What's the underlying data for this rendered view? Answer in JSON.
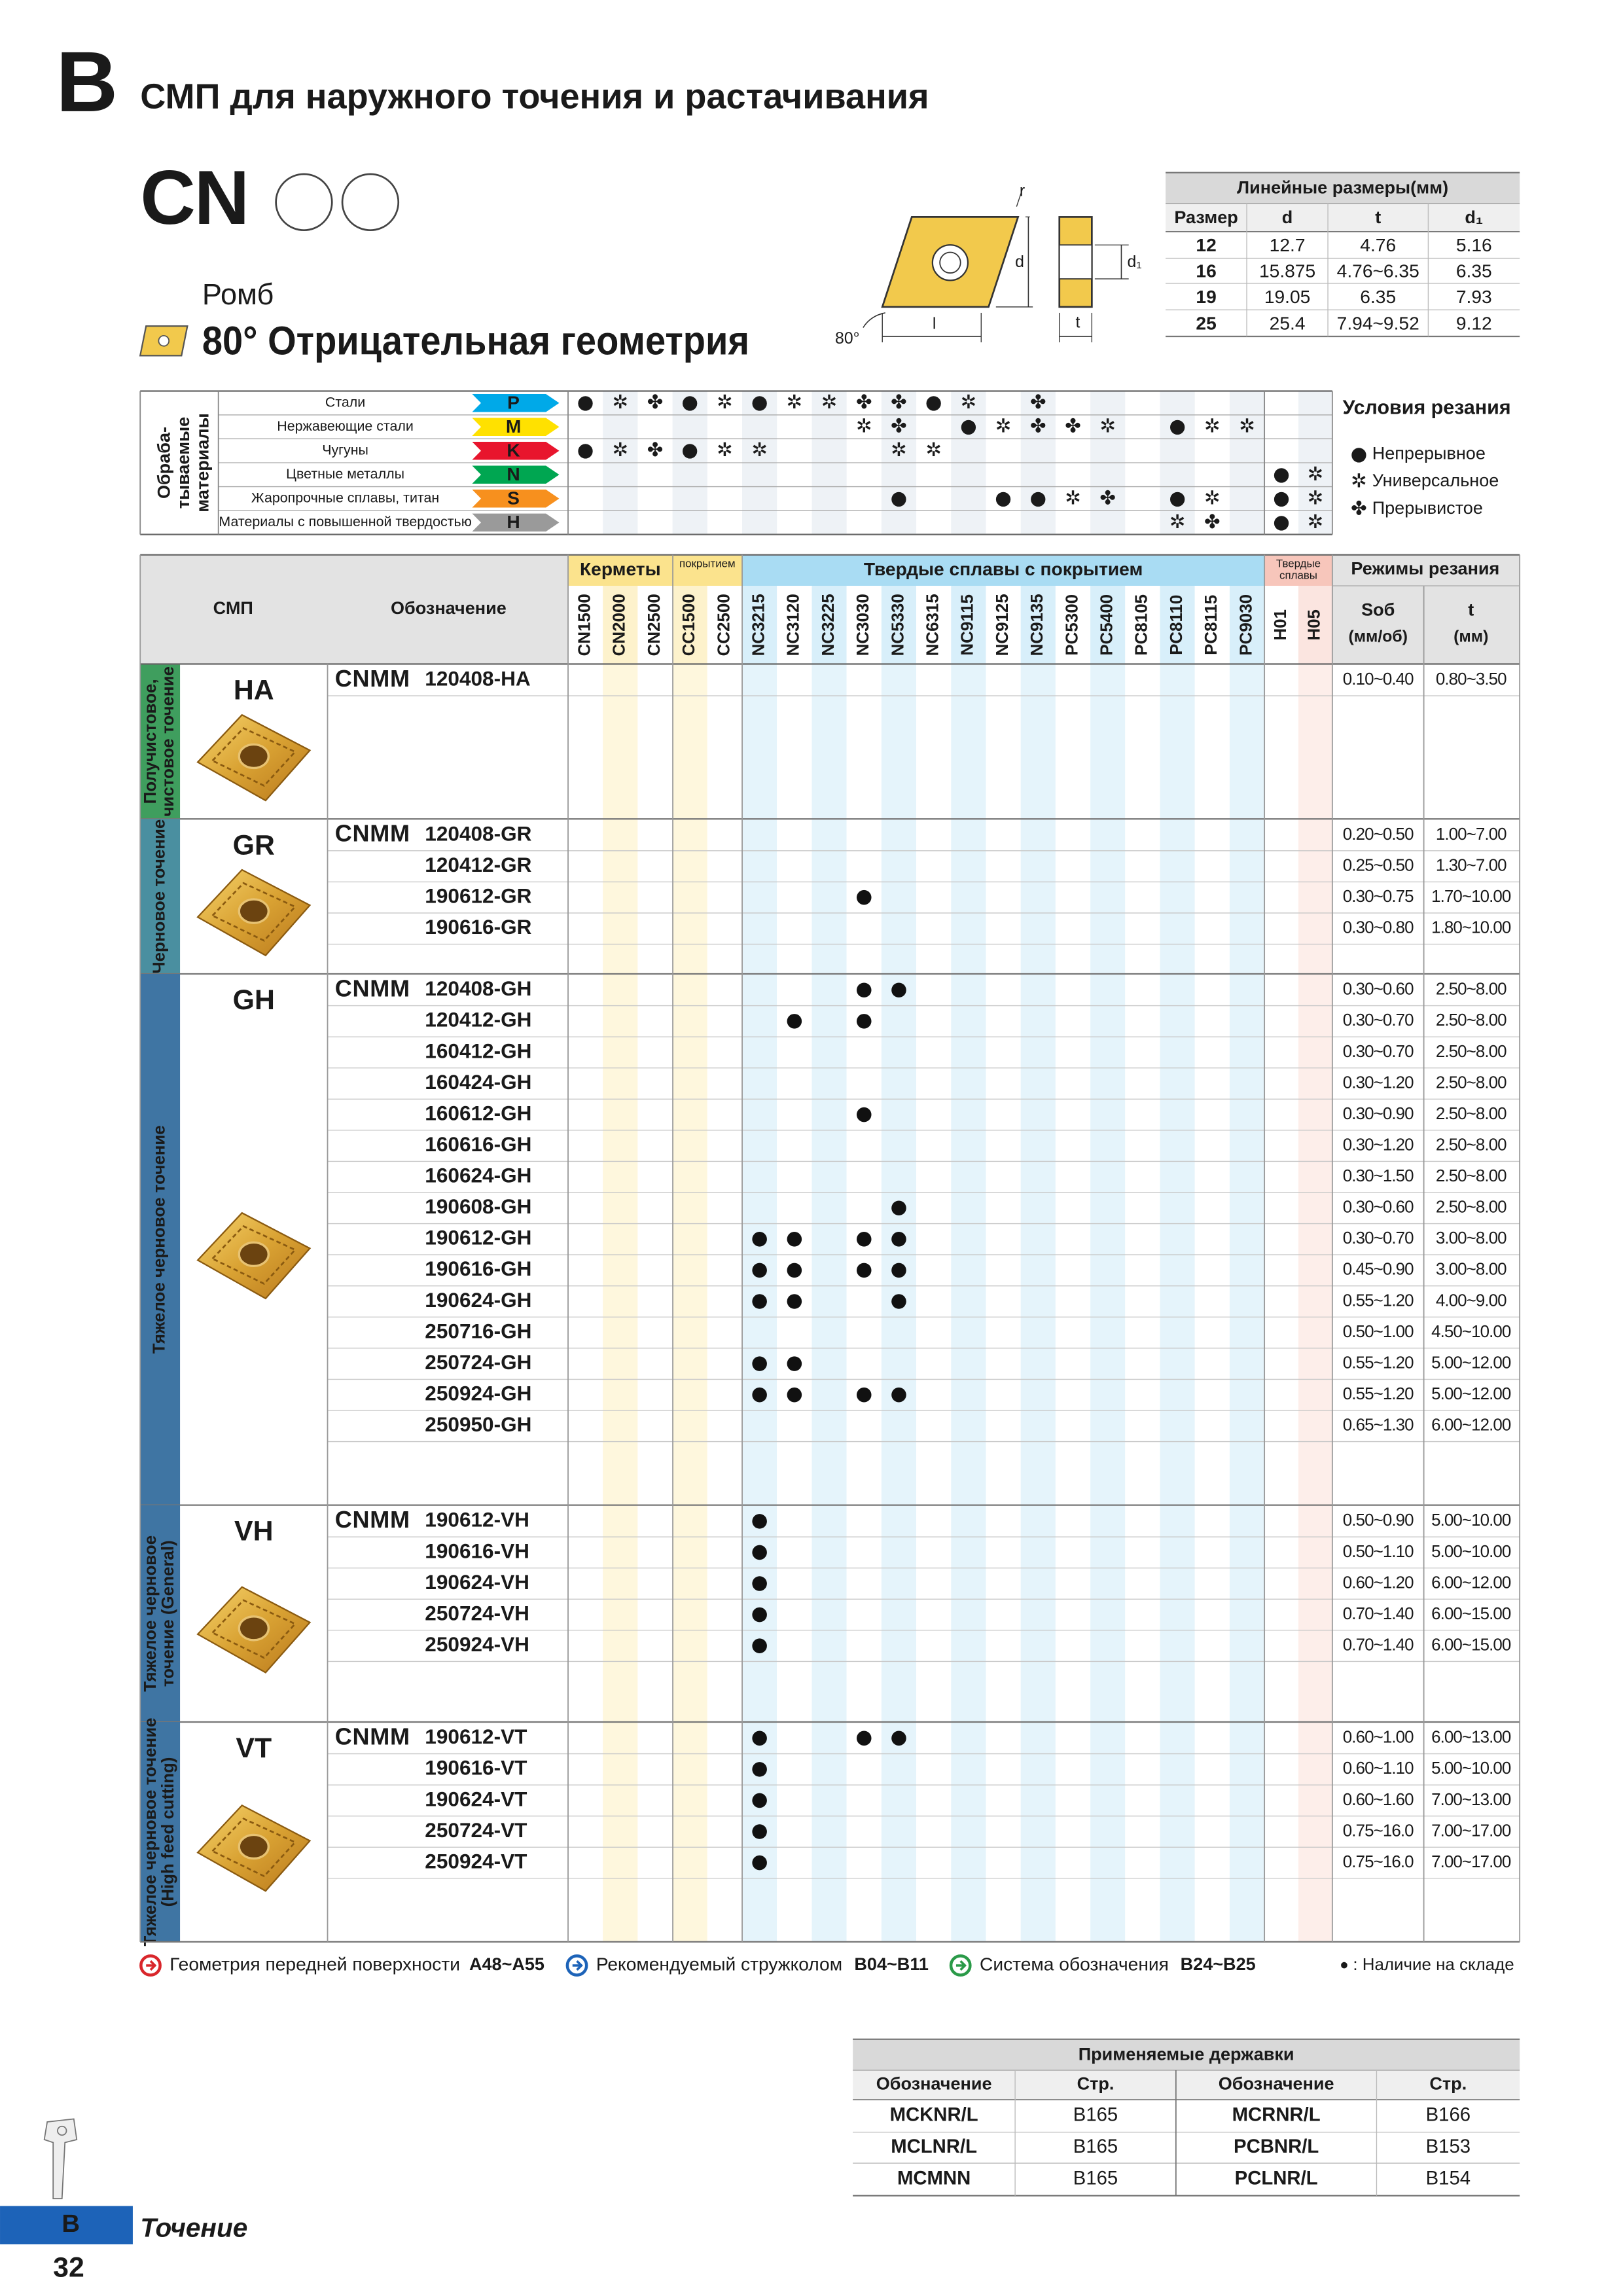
{
  "header": {
    "section": "B",
    "title": "СМП для наружного точения и растачивания",
    "code": "CN",
    "shape": "Ромб",
    "geometry": "80° Отрицательная геометрия"
  },
  "diagram_labels": {
    "r": "r",
    "d": "d",
    "d1": "d₁",
    "l": "l",
    "t": "t",
    "angle": "80°"
  },
  "dimensions": {
    "title": "Линейные размеры(мм)",
    "columns": [
      "Размер",
      "d",
      "t",
      "d₁"
    ],
    "rows": [
      [
        "12",
        "12.7",
        "4.76",
        "5.16"
      ],
      [
        "16",
        "15.875",
        "4.76~6.35",
        "6.35"
      ],
      [
        "19",
        "19.05",
        "6.35",
        "7.93"
      ],
      [
        "25",
        "25.4",
        "7.94~9.52",
        "9.12"
      ]
    ]
  },
  "materials": {
    "title_lines": [
      "Обраба-",
      "тываемые",
      "материалы"
    ],
    "rows": [
      {
        "name": "Стали",
        "iso": "P",
        "color": "#00a9e8",
        "cells": [
          "●",
          "✲",
          "✤",
          "●",
          "✲",
          "●",
          "✲",
          "✲",
          "✤",
          "✤",
          "●",
          "✲",
          null,
          "✤",
          null,
          null,
          null,
          null,
          null,
          null,
          null,
          null
        ]
      },
      {
        "name": "Нержавеющие стали",
        "iso": "M",
        "color": "#ffe100",
        "cells": [
          null,
          null,
          null,
          null,
          null,
          null,
          null,
          null,
          "✲",
          "✤",
          null,
          "●",
          "✲",
          "✤",
          "✤",
          "✲",
          null,
          "●",
          "✲",
          "✲",
          null,
          null
        ]
      },
      {
        "name": "Чугуны",
        "iso": "K",
        "color": "#e8152d",
        "cells": [
          "●",
          "✲",
          "✤",
          "●",
          "✲",
          "✲",
          null,
          null,
          null,
          "✲",
          "✲",
          null,
          null,
          null,
          null,
          null,
          null,
          null,
          null,
          null,
          null,
          null
        ]
      },
      {
        "name": "Цветные металлы",
        "iso": "N",
        "color": "#00a651",
        "cells": [
          null,
          null,
          null,
          null,
          null,
          null,
          null,
          null,
          null,
          null,
          null,
          null,
          null,
          null,
          null,
          null,
          null,
          null,
          null,
          null,
          "●",
          "✲"
        ]
      },
      {
        "name": "Жаропрочные сплавы, титан",
        "iso": "S",
        "color": "#f7901e",
        "cells": [
          null,
          null,
          null,
          null,
          null,
          null,
          null,
          null,
          null,
          "●",
          null,
          null,
          "●",
          "●",
          "✲",
          "✤",
          null,
          "●",
          "✲",
          null,
          "●",
          "✲"
        ]
      },
      {
        "name": "Материалы с повышенной твердостью",
        "iso": "H",
        "color": "#9a9a9a",
        "cells": [
          null,
          null,
          null,
          null,
          null,
          null,
          null,
          null,
          null,
          null,
          null,
          null,
          null,
          null,
          null,
          null,
          null,
          "✲",
          "✤",
          null,
          "●",
          "✲"
        ]
      }
    ]
  },
  "conditions": {
    "title": "Условия резания",
    "items": [
      {
        "symbol": "●",
        "label": "Непрерывное"
      },
      {
        "symbol": "✲",
        "label": "Универсальное"
      },
      {
        "symbol": "✤",
        "label": "Прерывистое"
      }
    ]
  },
  "main_table": {
    "headers": {
      "insert": "СМП",
      "designation": "Обозначение",
      "cutting": "Режимы резания",
      "feed": "Sоб",
      "feed_unit": "(мм/об)",
      "depth": "t",
      "depth_unit": "(мм)"
    },
    "grade_groups": [
      {
        "label": "Керметы",
        "color": "#fbe38d",
        "grades": [
          "CN1500",
          "CN2000",
          "CN2500"
        ]
      },
      {
        "label": "покрытием",
        "color": "#fbe38d",
        "grades": [
          "CC1500",
          "CC2500"
        ]
      },
      {
        "label": "Твердые сплавы с покрытием",
        "color": "#a9dcf3",
        "grades": [
          "NC3215",
          "NC3120",
          "NC3225",
          "NC3030",
          "NC5330",
          "NC6315",
          "NC9115",
          "NC9125",
          "NC9135",
          "PC5300",
          "PC5400",
          "PC8105",
          "PC8110",
          "PC8115",
          "PC9030"
        ]
      },
      {
        "label": "Твердые сплавы",
        "color": "#f7c6bb",
        "grades": [
          "H01",
          "H05"
        ]
      }
    ],
    "groups": [
      {
        "code": "HA",
        "label": [
          "Получистовое,",
          "чистовое точение"
        ],
        "color": "#3f9e5e",
        "rows": [
          {
            "prefix": "CNMM",
            "designation": "120408-HA",
            "stock": [],
            "feed": "0.10~0.40",
            "depth": "0.80~3.50"
          }
        ]
      },
      {
        "code": "GR",
        "label": [
          "Черновое точение"
        ],
        "color": "#4a8fa0",
        "rows": [
          {
            "prefix": "CNMM",
            "designation": "120408-GR",
            "stock": [],
            "feed": "0.20~0.50",
            "depth": "1.00~7.00"
          },
          {
            "designation": "120412-GR",
            "stock": [],
            "feed": "0.25~0.50",
            "depth": "1.30~7.00"
          },
          {
            "designation": "190612-GR",
            "stock": [
              "NC3030"
            ],
            "feed": "0.30~0.75",
            "depth": "1.70~10.00"
          },
          {
            "designation": "190616-GR",
            "stock": [],
            "feed": "0.30~0.80",
            "depth": "1.80~10.00"
          }
        ]
      },
      {
        "code": "GH",
        "label": [
          "Тяжелое черновое точение"
        ],
        "color": "#3f75a3",
        "rows": [
          {
            "prefix": "CNMM",
            "designation": "120408-GH",
            "stock": [
              "NC3030",
              "NC5330"
            ],
            "feed": "0.30~0.60",
            "depth": "2.50~8.00"
          },
          {
            "designation": "120412-GH",
            "stock": [
              "NC3120",
              "NC3030"
            ],
            "feed": "0.30~0.70",
            "depth": "2.50~8.00"
          },
          {
            "designation": "160412-GH",
            "stock": [],
            "feed": "0.30~0.70",
            "depth": "2.50~8.00"
          },
          {
            "designation": "160424-GH",
            "stock": [],
            "feed": "0.30~1.20",
            "depth": "2.50~8.00"
          },
          {
            "designation": "160612-GH",
            "stock": [
              "NC3030"
            ],
            "feed": "0.30~0.90",
            "depth": "2.50~8.00"
          },
          {
            "designation": "160616-GH",
            "stock": [],
            "feed": "0.30~1.20",
            "depth": "2.50~8.00"
          },
          {
            "designation": "160624-GH",
            "stock": [],
            "feed": "0.30~1.50",
            "depth": "2.50~8.00"
          },
          {
            "designation": "190608-GH",
            "stock": [
              "NC5330"
            ],
            "feed": "0.30~0.60",
            "depth": "2.50~8.00"
          },
          {
            "designation": "190612-GH",
            "stock": [
              "NC3215",
              "NC3120",
              "NC3030",
              "NC5330"
            ],
            "feed": "0.30~0.70",
            "depth": "3.00~8.00"
          },
          {
            "designation": "190616-GH",
            "stock": [
              "NC3215",
              "NC3120",
              "NC3030",
              "NC5330"
            ],
            "feed": "0.45~0.90",
            "depth": "3.00~8.00"
          },
          {
            "designation": "190624-GH",
            "stock": [
              "NC3215",
              "NC3120",
              "NC5330"
            ],
            "feed": "0.55~1.20",
            "depth": "4.00~9.00"
          },
          {
            "designation": "250716-GH",
            "stock": [],
            "feed": "0.50~1.00",
            "depth": "4.50~10.00"
          },
          {
            "designation": "250724-GH",
            "stock": [
              "NC3215",
              "NC3120"
            ],
            "feed": "0.55~1.20",
            "depth": "5.00~12.00"
          },
          {
            "designation": "250924-GH",
            "stock": [
              "NC3215",
              "NC3120",
              "NC3030",
              "NC5330"
            ],
            "feed": "0.55~1.20",
            "depth": "5.00~12.00"
          },
          {
            "designation": "250950-GH",
            "stock": [],
            "feed": "0.65~1.30",
            "depth": "6.00~12.00"
          }
        ]
      },
      {
        "code": "VH",
        "label": [
          "Тяжелое черновое",
          "точение (General)"
        ],
        "color": "#3f75a3",
        "rows": [
          {
            "prefix": "CNMM",
            "designation": "190612-VH",
            "stock": [
              "NC3215"
            ],
            "feed": "0.50~0.90",
            "depth": "5.00~10.00"
          },
          {
            "designation": "190616-VH",
            "stock": [
              "NC3215"
            ],
            "feed": "0.50~1.10",
            "depth": "5.00~10.00"
          },
          {
            "designation": "190624-VH",
            "stock": [
              "NC3215"
            ],
            "feed": "0.60~1.20",
            "depth": "6.00~12.00"
          },
          {
            "designation": "250724-VH",
            "stock": [
              "NC3215"
            ],
            "feed": "0.70~1.40",
            "depth": "6.00~15.00"
          },
          {
            "designation": "250924-VH",
            "stock": [
              "NC3215"
            ],
            "feed": "0.70~1.40",
            "depth": "6.00~15.00"
          }
        ]
      },
      {
        "code": "VT",
        "label": [
          "Тяжелое черновое точение",
          "(High feed cutting)"
        ],
        "color": "#3f75a3",
        "rows": [
          {
            "prefix": "CNMM",
            "designation": "190612-VT",
            "stock": [
              "NC3215",
              "NC3030",
              "NC5330"
            ],
            "feed": "0.60~1.00",
            "depth": "6.00~13.00"
          },
          {
            "designation": "190616-VT",
            "stock": [
              "NC3215"
            ],
            "feed": "0.60~1.10",
            "depth": "5.00~10.00"
          },
          {
            "designation": "190624-VT",
            "stock": [
              "NC3215"
            ],
            "feed": "0.60~1.60",
            "depth": "7.00~13.00"
          },
          {
            "designation": "250724-VT",
            "stock": [
              "NC3215"
            ],
            "feed": "0.75~16.0",
            "depth": "7.00~17.00"
          },
          {
            "designation": "250924-VT",
            "stock": [
              "NC3215"
            ],
            "feed": "0.75~16.0",
            "depth": "7.00~17.00"
          }
        ]
      }
    ]
  },
  "links": [
    {
      "label": "Геометрия передней поверхности",
      "pages": "A48~A55",
      "color": "#d9262b"
    },
    {
      "label": "Рекомендуемый стружколом",
      "pages": "B04~B11",
      "color": "#1d63b8"
    },
    {
      "label": "Система обозначения",
      "pages": "B24~B25",
      "color": "#2a9a48"
    }
  ],
  "stock_note": {
    "symbol": "●",
    "label": ": Наличие на складе"
  },
  "holders": {
    "title": "Применяемые державки",
    "columns": [
      "Обозначение",
      "Стр.",
      "Обозначение",
      "Стр."
    ],
    "rows": [
      [
        "MCKNR/L",
        "B165",
        "MCRNR/L",
        "B166"
      ],
      [
        "MCLNR/L",
        "B165",
        "PCBNR/L",
        "B153"
      ],
      [
        "MCMNN",
        "B165",
        "PCLNR/L",
        "B154"
      ]
    ]
  },
  "footer": {
    "section": "B",
    "label": "Точение",
    "page": "32"
  }
}
